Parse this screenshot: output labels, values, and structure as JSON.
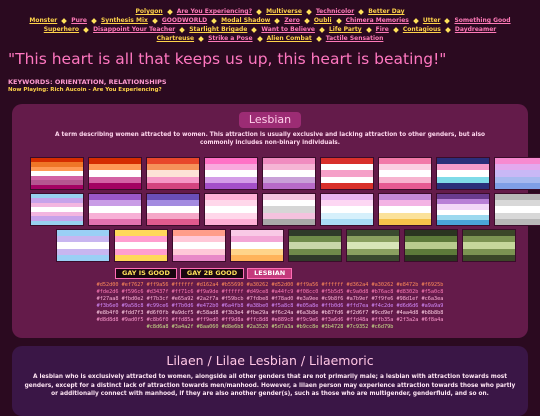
{
  "nav": [
    [
      "Polygon",
      "Are You Experiencing?",
      "Multiverse",
      "Technicolor",
      "Better Day"
    ],
    [
      "Monster",
      "Pure",
      "Synthesis Mix",
      "GOODWORLD",
      "Modal Shadow",
      "Zero",
      "Oubli",
      "Chimera Memories",
      "Utter",
      "Something Good"
    ],
    [
      "Superhero",
      "Disappoint Your Teacher",
      "Starlight Brigade",
      "Want to Believe",
      "Life Party",
      "Fire",
      "Contagious",
      "Daydreamer"
    ],
    [
      "Chartreuse",
      "Strike a Pose",
      "Alien Combat",
      "Tactile Sensation"
    ]
  ],
  "quote": "\"This heart is all that keeps us up, this heart is beating!\"",
  "keywords": "KEYWORDS: ORIENTATION, RELATIONSHIPS",
  "now_playing": "Now Playing: Rich Aucoin - Are You Experiencing?",
  "sections": [
    {
      "title": "Lesbian",
      "description": "A term describing women attracted to women. This attraction is usually exclusive and lacking attraction to other genders, but also commonly includes non-binary individuals.",
      "flags": [
        [
          "#d52d00",
          "#ef7627",
          "#ff9a56",
          "#ffffff",
          "#d162a4",
          "#b55690",
          "#a30262"
        ],
        [
          "#d52d00",
          "#ff9a56",
          "#ffffff",
          "#d362a4",
          "#a30262"
        ],
        [
          "#e8472b",
          "#f6925b",
          "#fde2d6",
          "#f596c6",
          "#d3437f"
        ],
        [
          "#ff71c6",
          "#f9a9de",
          "#ffffff",
          "#d49ce8",
          "#a44fc9"
        ],
        [
          "#f08cc0",
          "#f5b5d5",
          "#ffffff",
          "#c9a0d8",
          "#b76ac8"
        ],
        [
          "#d8302b",
          "#ffffff",
          "#f5a0c8",
          "#ffffff",
          "#d8302b"
        ],
        [
          "#f27aa8",
          "#fbd0e2",
          "#ffffff",
          "#f7b3cf",
          "#e65a92"
        ],
        [
          "#2a2f7a",
          "#f59bcb",
          "#ffffff",
          "#7fdbe8",
          "#2a2f7a"
        ],
        [
          "#f78ad0",
          "#e3a9ee",
          "#c9b8f6",
          "#a7b9ef",
          "#7f9fe6"
        ],
        [
          "#98d1ef",
          "#c6a3ea",
          "#f3b6e0",
          "#ffffff",
          "#f3b6e0",
          "#c6a3ea",
          "#98d1ef"
        ],
        [
          "#9a58c8",
          "#c99ce6",
          "#ffffff",
          "#f7b0d6",
          "#e472b0"
        ],
        [
          "#6a4fb8",
          "#a38be0",
          "#ffffff",
          "#f5a8c8",
          "#e05a8e"
        ],
        [
          "#ffb0d6",
          "#ffd7ea",
          "#ffffff",
          "#ffd7ea",
          "#ffb0d6"
        ],
        [
          "#f4c2de",
          "#ffffff",
          "#d6d6d6",
          "#f4c2de",
          "#a9a9a9"
        ],
        [
          "#e8b4f0",
          "#fdd7f3",
          "#ffffff",
          "#d6f0fb",
          "#a9dcf5"
        ],
        [
          "#c58ad8",
          "#f3b3e4",
          "#ffffff",
          "#fbe29a",
          "#f6c24a"
        ],
        [
          "#6a3b8e",
          "#b87fd6",
          "#f2d6f7",
          "#ffffff",
          "#9cd9ef",
          "#4aa4d8"
        ],
        [
          "#b8b8b8",
          "#d8d8d8",
          "#ffffff",
          "#d8d8d8",
          "#b8b8b8"
        ],
        [
          "#9ad0f5",
          "#c8b6f0",
          "#ffffff",
          "#c8b6f0",
          "#9ad0f5"
        ],
        [
          "#ffd85a",
          "#ff9ed0",
          "#ffffff",
          "#ff9ed0",
          "#ffd85a"
        ],
        [
          "#ff9d8a",
          "#ffc8d8",
          "#ffffff",
          "#ffc8d8",
          "#e889c8"
        ],
        [
          "#f9c9e6",
          "#f3a6d6",
          "#ffffff",
          "#ffd48a",
          "#ffb35a"
        ],
        [
          "#2f3a2a",
          "#6f8a4a",
          "#c8d6a8",
          "#6f8a4a",
          "#2f3a2a"
        ],
        [
          "#3a4a2f",
          "#8aa060",
          "#d8e6b8",
          "#8aa060",
          "#3a4a2f"
        ],
        [
          "#2a3520",
          "#5d7a3a",
          "#b9cc8e",
          "#5d7a3a",
          "#2a3520"
        ],
        [
          "#3b4728",
          "#7c9352",
          "#c6d79b",
          "#7c9352",
          "#3b4728"
        ]
      ],
      "badges": [
        "GAY IS GOOD",
        "GAY 2B GOOD",
        "LESBIAN"
      ],
      "color_codes": [
        "#d52d00 #ef7627 #ff9a56 #ffffff #d162a4 #b55690 #a30262 #d52d00 #ff9a56 #ffffff #d362a4 #a30262 #e8472b #f6925b",
        "#fde2d6 #f596c6 #d3437f #ff71c6 #f9a9de #ffffff #d49ce8 #a44fc9 #f08cc0 #f5b5d5 #c9a0d8 #b76ac8 #d8302b #f5a0c8",
        "#f27aa8 #fbd0e2 #f7b3cf #e65a92 #2a2f7a #f59bcb #7fdbe8 #f78ad0 #e3a9ee #c9b8f6 #a7b9ef #7f9fe6 #98d1ef #c6a3ea",
        "#f3b6e0 #9a58c8 #c99ce6 #f7b0d6 #e472b0 #6a4fb8 #a38be0 #f5a8c8 #e05a8e #ffb0d6 #ffd7ea #f4c2de #d6d6d6 #a9a9a9",
        "#e8b4f0 #fdd7f3 #d6f0fb #a9dcf5 #c58ad8 #f3b3e4 #fbe29a #f6c24a #6a3b8e #b87fd6 #f2d6f7 #9cd9ef #4aa4d8 #b8b8b8",
        "#d8d8d8 #9ad0f5 #c8b6f0 #ffd85a #ff9ed0 #ff9d8a #ffc8d8 #e889c8 #f9c9e6 #f3a6d6 #ffd48a #ffb35a #2f3a2a #6f8a4a",
        "#c8d6a8 #3a4a2f #8aa060 #d8e6b8 #2a3520 #5d7a3a #b9cc8e #3b4728 #7c9352 #c6d79b"
      ]
    },
    {
      "title": "Lilaen / Lilae Lesbian / Lilaemoric",
      "description": "A lesbian who is exclusively attracted to women, alongside all other genders that are not primarily male; a lesbian with attraction towards most genders, except for a distinct lack of attraction towards men/manhood. However, a lilaen person may experience attraction towards those who partly or additionally connect with manhood, if they are also another gender(s), such as those who are multigender, genderfluid, and so on."
    }
  ]
}
